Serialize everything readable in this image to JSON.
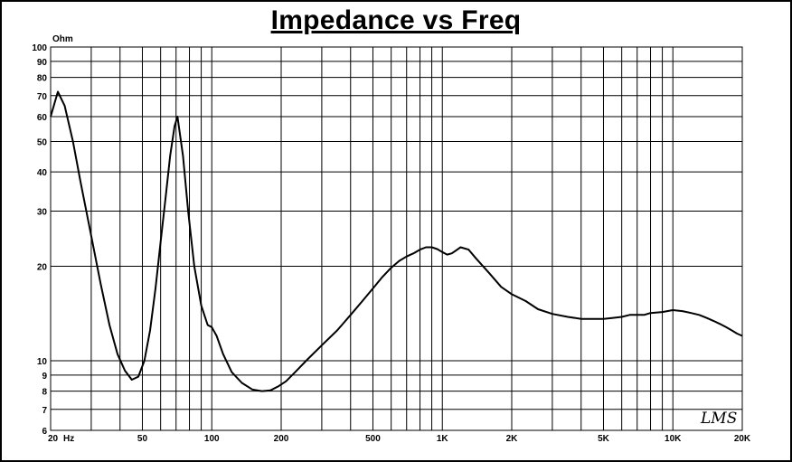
{
  "chart_data": {
    "type": "line",
    "title": "Impedance vs Freq",
    "xlabel": "Hz",
    "ylabel": "Ohm",
    "xscale": "log",
    "yscale": "log",
    "xlim": [
      20,
      20000
    ],
    "ylim": [
      6,
      100
    ],
    "grid": true,
    "x_tick_labels": [
      {
        "value": 20,
        "label": "20"
      },
      {
        "value": 50,
        "label": "50"
      },
      {
        "value": 100,
        "label": "100"
      },
      {
        "value": 200,
        "label": "200"
      },
      {
        "value": 500,
        "label": "500"
      },
      {
        "value": 1000,
        "label": "1K"
      },
      {
        "value": 2000,
        "label": "2K"
      },
      {
        "value": 5000,
        "label": "5K"
      },
      {
        "value": 10000,
        "label": "10K"
      },
      {
        "value": 20000,
        "label": "20K"
      }
    ],
    "y_tick_labels": [
      {
        "value": 100,
        "label": "100"
      },
      {
        "value": 90,
        "label": "90"
      },
      {
        "value": 80,
        "label": "80"
      },
      {
        "value": 70,
        "label": "70"
      },
      {
        "value": 60,
        "label": "60"
      },
      {
        "value": 50,
        "label": "50"
      },
      {
        "value": 40,
        "label": "40"
      },
      {
        "value": 30,
        "label": "30"
      },
      {
        "value": 20,
        "label": "20"
      },
      {
        "value": 10,
        "label": "10"
      },
      {
        "value": 9,
        "label": "9"
      },
      {
        "value": 8,
        "label": "8"
      },
      {
        "value": 7,
        "label": "7"
      },
      {
        "value": 6,
        "label": "6"
      }
    ],
    "series": [
      {
        "x": [
          20,
          21.5,
          23,
          25,
          27,
          30,
          33,
          36,
          39,
          42,
          45,
          48,
          51,
          54,
          57,
          60,
          63,
          66,
          69,
          71,
          75,
          79,
          84,
          90,
          96,
          100,
          105,
          112,
          122,
          135,
          150,
          165,
          180,
          195,
          210,
          230,
          260,
          300,
          350,
          400,
          450,
          500,
          550,
          600,
          650,
          700,
          750,
          800,
          850,
          900,
          950,
          1000,
          1050,
          1100,
          1150,
          1200,
          1300,
          1400,
          1600,
          1800,
          2000,
          2300,
          2600,
          3000,
          3500,
          4000,
          4500,
          5000,
          5500,
          6000,
          6500,
          7000,
          7500,
          8000,
          9000,
          10000,
          11000,
          12000,
          13000,
          14000,
          15000,
          16000,
          17000,
          18000,
          19000,
          20000
        ],
        "y": [
          60,
          72,
          65,
          50,
          37,
          25,
          17.5,
          13,
          10.5,
          9.3,
          8.7,
          8.9,
          10,
          12.5,
          17,
          24,
          33,
          45,
          56,
          60,
          45,
          30,
          20,
          15,
          13,
          12.8,
          12,
          10.5,
          9.2,
          8.5,
          8.1,
          8.0,
          8.05,
          8.3,
          8.6,
          9.2,
          10.1,
          11.2,
          12.5,
          14,
          15.5,
          17,
          18.5,
          19.8,
          20.8,
          21.5,
          22,
          22.6,
          23,
          23,
          22.7,
          22.2,
          21.8,
          22,
          22.5,
          23,
          22.6,
          21.2,
          19,
          17.2,
          16.3,
          15.5,
          14.6,
          14.1,
          13.8,
          13.6,
          13.6,
          13.6,
          13.7,
          13.8,
          14,
          14,
          14,
          14.2,
          14.3,
          14.5,
          14.4,
          14.2,
          14.0,
          13.7,
          13.4,
          13.1,
          12.8,
          12.5,
          12.2,
          12.0
        ]
      }
    ]
  },
  "signature": "LMS"
}
